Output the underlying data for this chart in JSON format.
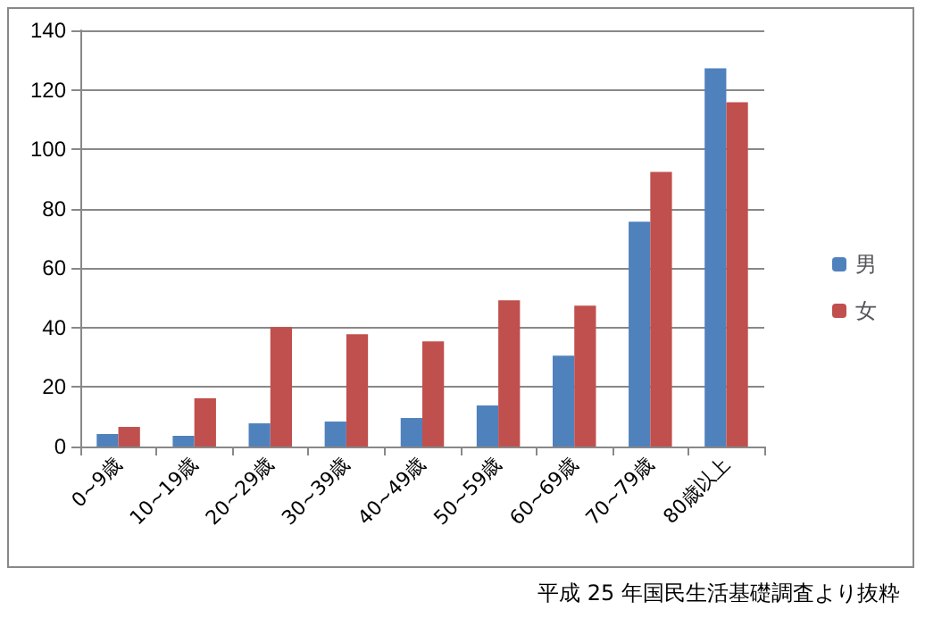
{
  "chart_data": {
    "type": "bar",
    "categories": [
      "0~9歳",
      "10~19歳",
      "20~29歳",
      "30~39歳",
      "40~49歳",
      "50~59歳",
      "60~69歳",
      "70~79歳",
      "80歳以上"
    ],
    "series": [
      {
        "name": "男",
        "color": "#4f81bd",
        "values": [
          4.2,
          3.6,
          7.8,
          8.4,
          9.6,
          13.8,
          30.6,
          75.6,
          127.2
        ]
      },
      {
        "name": "女",
        "color": "#c0504d",
        "values": [
          6.6,
          16.2,
          40.2,
          37.8,
          35.4,
          49.2,
          47.4,
          92.4,
          115.8
        ]
      }
    ],
    "ylim": [
      0,
      140
    ],
    "yticks": [
      0,
      20,
      40,
      60,
      80,
      100,
      120,
      140
    ],
    "grid": "y",
    "legend": "right",
    "annotations": [
      "平成 25 年国民生活基礎調査より抜粋"
    ]
  }
}
